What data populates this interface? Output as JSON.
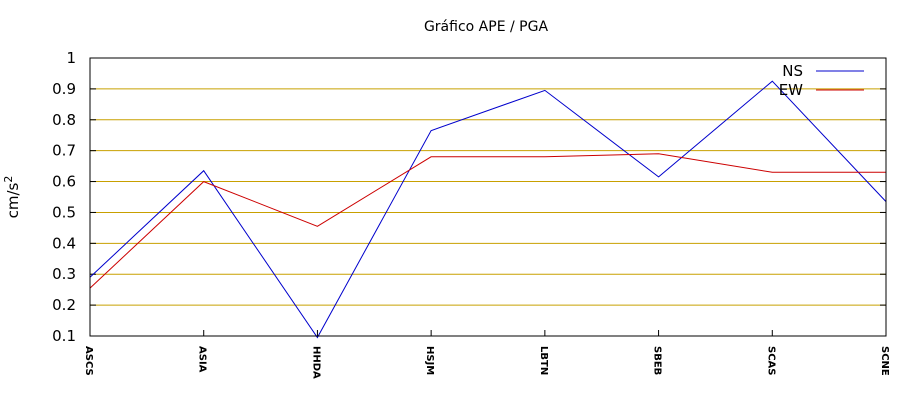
{
  "chart_data": {
    "type": "line",
    "title": "Gráfico  APE / PGA",
    "ylabel": "cm/s",
    "ylabel_superscript": "2",
    "ylim": [
      0.1,
      1.0
    ],
    "yticks": [
      0.1,
      0.2,
      0.3,
      0.4,
      0.5,
      0.6,
      0.7,
      0.8,
      0.9,
      1
    ],
    "ytick_labels": [
      "0.1",
      "0.2",
      "0.3",
      "0.4",
      "0.5",
      "0.6",
      "0.7",
      "0.8",
      "0.9",
      "1"
    ],
    "grid": "horizontal",
    "grid_color": "#c8a000",
    "legend_position": "top-right",
    "categories": [
      "ASCS",
      "ASIA",
      "HHDA",
      "HSJM",
      "LBTN",
      "SBEB",
      "SCAS",
      "SCNE"
    ],
    "series": [
      {
        "name": "NS",
        "color": "#0000cc",
        "values": [
          0.29,
          0.635,
          0.095,
          0.765,
          0.895,
          0.615,
          0.925,
          0.535
        ]
      },
      {
        "name": "EW",
        "color": "#cc0000",
        "values": [
          0.255,
          0.6,
          0.455,
          0.68,
          0.68,
          0.69,
          0.63,
          0.63
        ]
      }
    ]
  }
}
